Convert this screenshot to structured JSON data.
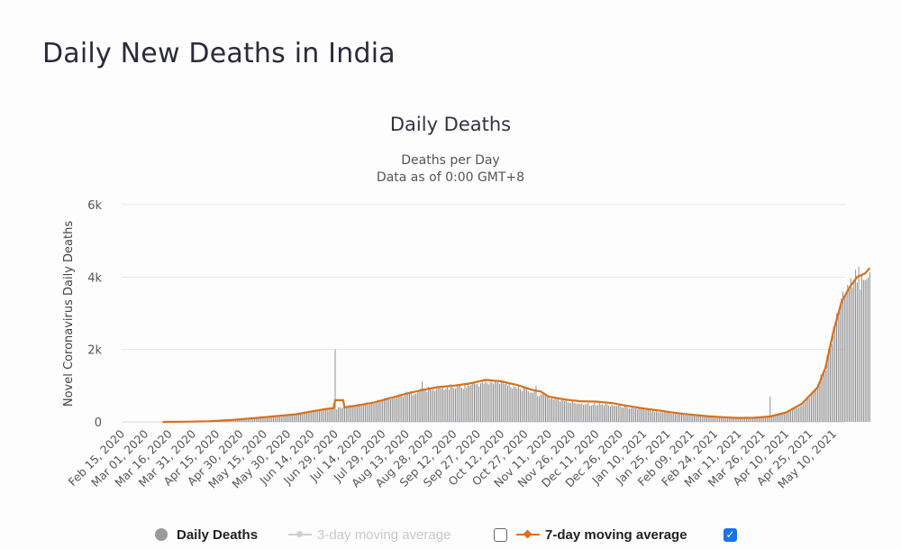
{
  "page": {
    "title": "Daily New Deaths in India"
  },
  "chart_data": {
    "type": "bar",
    "title": "Daily Deaths",
    "subtitle": [
      "Deaths per Day",
      "Data as of 0:00 GMT+8"
    ],
    "ylabel": "Novel Coronavirus Daily Deaths",
    "xlabel": "",
    "ylim": [
      0,
      6000
    ],
    "y_ticks": [
      {
        "value": 0,
        "label": "0"
      },
      {
        "value": 2000,
        "label": "2k"
      },
      {
        "value": 4000,
        "label": "4k"
      },
      {
        "value": 6000,
        "label": "6k"
      }
    ],
    "grid": true,
    "x_start_date": "2020-02-15",
    "x_end_day": 458,
    "x_tick_labels": [
      "Feb 15, 2020",
      "Mar 01, 2020",
      "Mar 16, 2020",
      "Mar 31, 2020",
      "Apr 15, 2020",
      "Apr 30, 2020",
      "May 15, 2020",
      "May 30, 2020",
      "Jun 14, 2020",
      "Jun 29, 2020",
      "Jul 14, 2020",
      "Jul 29, 2020",
      "Aug 13, 2020",
      "Aug 28, 2020",
      "Sep 12, 2020",
      "Sep 27, 2020",
      "Oct 12, 2020",
      "Oct 27, 2020",
      "Nov 11, 2020",
      "Nov 26, 2020",
      "Dec 11, 2020",
      "Dec 26, 2020",
      "Jan 10, 2021",
      "Jan 25, 2021",
      "Feb 09, 2021",
      "Feb 24, 2021",
      "Mar 11, 2021",
      "Mar 26, 2021",
      "Apr 10, 2021",
      "Apr 25, 2021",
      "May 10, 2021"
    ],
    "x_tick_interval_days": 15,
    "series": [
      {
        "name": "Daily Deaths",
        "kind": "bar",
        "color": "#8c8c8c",
        "anchors_day_value": [
          [
            0,
            0
          ],
          [
            26,
            0
          ],
          [
            40,
            3
          ],
          [
            55,
            15
          ],
          [
            70,
            50
          ],
          [
            85,
            100
          ],
          [
            100,
            160
          ],
          [
            110,
            200
          ],
          [
            120,
            300
          ],
          [
            130,
            370
          ],
          [
            134,
            380
          ],
          [
            135,
            2000
          ],
          [
            136,
            380
          ],
          [
            140,
            420
          ],
          [
            150,
            480
          ],
          [
            160,
            560
          ],
          [
            170,
            700
          ],
          [
            180,
            800
          ],
          [
            190,
            900
          ],
          [
            200,
            950
          ],
          [
            210,
            1000
          ],
          [
            220,
            1050
          ],
          [
            230,
            1120
          ],
          [
            240,
            1100
          ],
          [
            250,
            1000
          ],
          [
            260,
            850
          ],
          [
            270,
            700
          ],
          [
            280,
            580
          ],
          [
            290,
            530
          ],
          [
            300,
            500
          ],
          [
            310,
            480
          ],
          [
            320,
            420
          ],
          [
            330,
            350
          ],
          [
            340,
            290
          ],
          [
            350,
            230
          ],
          [
            360,
            180
          ],
          [
            370,
            150
          ],
          [
            380,
            120
          ],
          [
            390,
            100
          ],
          [
            400,
            110
          ],
          [
            410,
            150
          ],
          [
            420,
            250
          ],
          [
            430,
            500
          ],
          [
            440,
            1000
          ],
          [
            445,
            1600
          ],
          [
            450,
            2600
          ],
          [
            455,
            3500
          ],
          [
            460,
            3700
          ],
          [
            465,
            4100
          ],
          [
            470,
            4200
          ],
          [
            473,
            4500
          ]
        ],
        "spikes_day_value": [
          [
            135,
            2000
          ],
          [
            190,
            1120
          ],
          [
            243,
            1100
          ],
          [
            262,
            1000
          ],
          [
            410,
            700
          ]
        ]
      },
      {
        "name": "3-day moving average",
        "kind": "line",
        "color": "#cccccc",
        "visible": false
      },
      {
        "name": "7-day moving average",
        "kind": "line",
        "color": "#d9701c",
        "visible": true,
        "points_day_value": [
          [
            26,
            0
          ],
          [
            40,
            5
          ],
          [
            55,
            18
          ],
          [
            70,
            55
          ],
          [
            85,
            110
          ],
          [
            100,
            170
          ],
          [
            110,
            210
          ],
          [
            120,
            290
          ],
          [
            130,
            360
          ],
          [
            134,
            380
          ],
          [
            135,
            600
          ],
          [
            140,
            600
          ],
          [
            141,
            400
          ],
          [
            150,
            460
          ],
          [
            160,
            540
          ],
          [
            170,
            660
          ],
          [
            180,
            780
          ],
          [
            190,
            880
          ],
          [
            200,
            960
          ],
          [
            210,
            1000
          ],
          [
            220,
            1060
          ],
          [
            230,
            1160
          ],
          [
            240,
            1120
          ],
          [
            250,
            1020
          ],
          [
            260,
            880
          ],
          [
            265,
            840
          ],
          [
            270,
            700
          ],
          [
            280,
            620
          ],
          [
            290,
            570
          ],
          [
            300,
            560
          ],
          [
            310,
            520
          ],
          [
            320,
            440
          ],
          [
            330,
            370
          ],
          [
            340,
            310
          ],
          [
            350,
            250
          ],
          [
            360,
            200
          ],
          [
            370,
            160
          ],
          [
            380,
            130
          ],
          [
            390,
            110
          ],
          [
            400,
            115
          ],
          [
            410,
            150
          ],
          [
            420,
            260
          ],
          [
            430,
            500
          ],
          [
            440,
            950
          ],
          [
            445,
            1500
          ],
          [
            450,
            2500
          ],
          [
            455,
            3300
          ],
          [
            460,
            3700
          ],
          [
            465,
            4000
          ],
          [
            470,
            4100
          ],
          [
            473,
            4250
          ]
        ]
      }
    ],
    "legend": {
      "position": "bottom",
      "items": [
        {
          "label": "Daily Deaths",
          "enabled": true
        },
        {
          "label": "3-day moving average",
          "enabled": false,
          "checkbox_checked": false
        },
        {
          "label": "7-day moving average",
          "enabled": true,
          "checkbox_checked": true
        }
      ]
    }
  }
}
